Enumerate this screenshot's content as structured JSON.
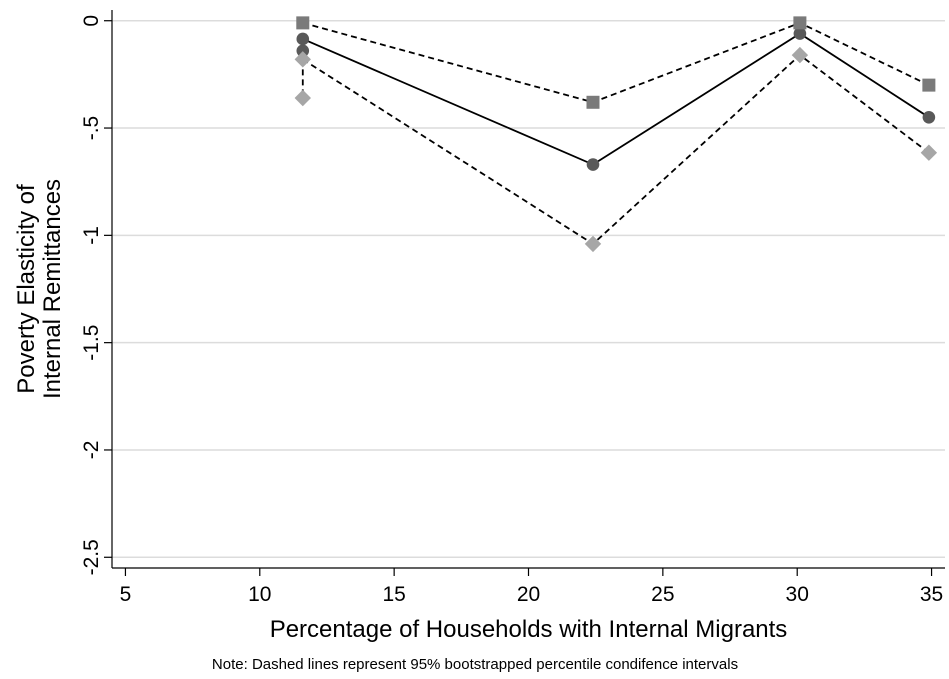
{
  "chart_data": {
    "type": "line",
    "title": "",
    "xlabel": "Percentage of Households with Internal Migrants",
    "ylabel_lines": [
      "Poverty Elasticity of",
      "Internal Remittances"
    ],
    "note": "Note: Dashed lines represent 95% bootstrapped percentile condifence intervals",
    "xlim": [
      4.5,
      35.5
    ],
    "ylim": [
      -2.55,
      0.05
    ],
    "xticks": [
      5,
      10,
      15,
      20,
      25,
      30,
      35
    ],
    "xtick_labels": [
      "5",
      "10",
      "15",
      "20",
      "25",
      "30",
      "35"
    ],
    "yticks": [
      0,
      -0.5,
      -1,
      -1.5,
      -2,
      -2.5
    ],
    "ytick_labels": [
      "0",
      "-.5",
      "-1",
      "-1.5",
      "-2",
      "-2.5"
    ],
    "grid": true,
    "legend": false,
    "series": [
      {
        "role": "upper-ci",
        "x": [
          11.6,
          22.4,
          30.1,
          34.9
        ],
        "y": [
          -0.01,
          -0.38,
          -0.01,
          -0.3
        ],
        "marker": "square",
        "line": "dashed",
        "color": "#7a7a7a"
      },
      {
        "role": "estimate",
        "x": [
          11.6,
          22.4,
          30.1,
          34.9
        ],
        "y": [
          -0.085,
          -0.67,
          -0.06,
          -0.45
        ],
        "marker": "circle",
        "line": "solid",
        "color": "#595959"
      },
      {
        "role": "lower-ci",
        "x": [
          11.6,
          22.4,
          30.1,
          34.9
        ],
        "y": [
          -0.18,
          -1.04,
          -0.16,
          -0.615
        ],
        "marker": "diamond",
        "line": "dashed",
        "color": "#a6a6a6"
      }
    ],
    "extra_points": [
      {
        "x": 11.6,
        "y": -0.14,
        "marker": "circle",
        "color": "#595959"
      },
      {
        "x": 11.6,
        "y": -0.36,
        "marker": "diamond",
        "color": "#a6a6a6"
      }
    ],
    "extra_segments": [
      {
        "x": [
          11.6,
          11.6
        ],
        "y": [
          -0.18,
          -0.36
        ],
        "line": "dashed"
      }
    ]
  }
}
